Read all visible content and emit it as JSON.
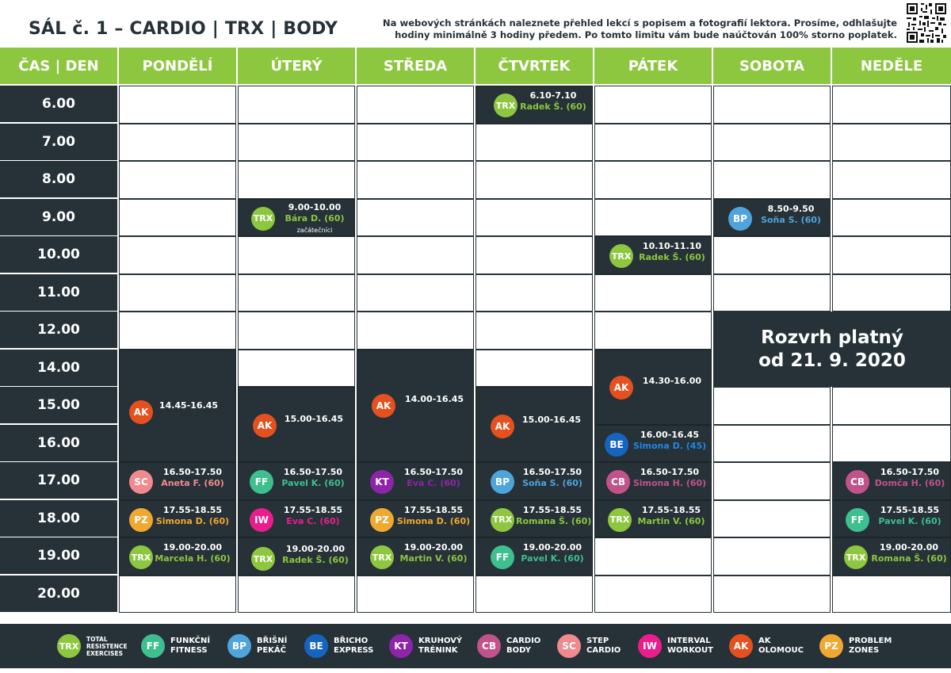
{
  "title": "SÁL č. 1 – CARDIO | TRX | BODY",
  "notice": {
    "line1": "Na webových stránkách naleznete přehled lekcí s popisem a fotografií lektora. Prosíme, odhlašujte",
    "line2": "hodiny minimálně 3 hodiny předem. Po tomto limitu vám bude naúčtován 100% storno poplatek."
  },
  "header": {
    "time_col": "ČAS | DEN",
    "days": [
      "PONDĚLÍ",
      "ÚTERÝ",
      "STŘEDA",
      "ČTVRTEK",
      "PÁTEK",
      "SOBOTA",
      "NEDĚLE"
    ]
  },
  "times": [
    "6.00",
    "7.00",
    "8.00",
    "9.00",
    "10.00",
    "11.00",
    "12.00",
    "14.00",
    "15.00",
    "16.00",
    "17.00",
    "18.00",
    "19.00",
    "20.00"
  ],
  "lesson_colors": {
    "TRX": "#8dc63f",
    "FF": "#3dbf8e",
    "BP": "#4fa4dc",
    "BE": "#1565c0",
    "KT": "#8e24aa",
    "CB": "#c2528a",
    "SC": "#f08a8e",
    "IW": "#e91e8c",
    "AK": "#e5501e",
    "PZ": "#f0a830"
  },
  "lessons": [
    {
      "day": 0,
      "code": "AK",
      "time": "14.45-16.45",
      "trainer": "",
      "trainer_color": "#ffffff",
      "note": ""
    },
    {
      "day": 0,
      "code": "SC",
      "time": "16.50-17.50",
      "trainer": "Aneta F. (60)",
      "trainer_color": "#f08a8e",
      "note": ""
    },
    {
      "day": 0,
      "code": "PZ",
      "time": "17.55-18.55",
      "trainer": "Simona D. (60)",
      "trainer_color": "#f0a830",
      "note": ""
    },
    {
      "day": 0,
      "code": "TRX",
      "time": "19.00-20.00",
      "trainer": "Marcela H. (60)",
      "trainer_color": "#8dc63f",
      "note": ""
    },
    {
      "day": 1,
      "code": "TRX",
      "time": "9.00-10.00",
      "trainer": "Bára D. (60)",
      "trainer_color": "#8dc63f",
      "note": "začátečníci"
    },
    {
      "day": 1,
      "code": "AK",
      "time": "15.00-16.45",
      "trainer": "",
      "trainer_color": "#ffffff",
      "note": ""
    },
    {
      "day": 1,
      "code": "FF",
      "time": "16.50-17.50",
      "trainer": "Pavel K. (60)",
      "trainer_color": "#3dbf8e",
      "note": ""
    },
    {
      "day": 1,
      "code": "IW",
      "time": "17.55-18.55",
      "trainer": "Eva C. (60)",
      "trainer_color": "#e91e8c",
      "note": ""
    },
    {
      "day": 1,
      "code": "TRX",
      "time": "19.00-20.00",
      "trainer": "Radek Š. (60)",
      "trainer_color": "#8dc63f",
      "note": ""
    },
    {
      "day": 2,
      "code": "AK",
      "time": "14.00-16.45",
      "trainer": "",
      "trainer_color": "#ffffff",
      "note": ""
    },
    {
      "day": 2,
      "code": "KT",
      "time": "16.50-17.50",
      "trainer": "Eva C. (60)",
      "trainer_color": "#8e24aa",
      "note": ""
    },
    {
      "day": 2,
      "code": "PZ",
      "time": "17.55-18.55",
      "trainer": "Simona D. (60)",
      "trainer_color": "#f0a830",
      "note": ""
    },
    {
      "day": 2,
      "code": "TRX",
      "time": "19.00-20.00",
      "trainer": "Martin V. (60)",
      "trainer_color": "#8dc63f",
      "note": ""
    },
    {
      "day": 3,
      "code": "TRX",
      "time": "6.10-7.10",
      "trainer": "Radek Š. (60)",
      "trainer_color": "#8dc63f",
      "note": ""
    },
    {
      "day": 3,
      "code": "AK",
      "time": "15.00-16.45",
      "trainer": "",
      "trainer_color": "#ffffff",
      "note": ""
    },
    {
      "day": 3,
      "code": "BP",
      "time": "16.50-17.50",
      "trainer": "Soňa S. (60)",
      "trainer_color": "#4fa4dc",
      "note": ""
    },
    {
      "day": 3,
      "code": "TRX",
      "time": "17.55-18.55",
      "trainer": "Romana Š. (60)",
      "trainer_color": "#8dc63f",
      "note": ""
    },
    {
      "day": 3,
      "code": "FF",
      "time": "19.00-20.00",
      "trainer": "Pavel K. (60)",
      "trainer_color": "#3dbf8e",
      "note": ""
    },
    {
      "day": 4,
      "code": "TRX",
      "time": "10.10-11.10",
      "trainer": "Radek Š. (60)",
      "trainer_color": "#8dc63f",
      "note": ""
    },
    {
      "day": 4,
      "code": "AK",
      "time": "14.30-16.00",
      "trainer": "",
      "trainer_color": "#ffffff",
      "note": ""
    },
    {
      "day": 4,
      "code": "BE",
      "time": "16.00-16.45",
      "trainer": "Simona D. (45)",
      "trainer_color": "#1e88e5",
      "note": ""
    },
    {
      "day": 4,
      "code": "CB",
      "time": "16.50-17.50",
      "trainer": "Simona H. (60)",
      "trainer_color": "#c2528a",
      "note": ""
    },
    {
      "day": 4,
      "code": "TRX",
      "time": "17.55-18.55",
      "trainer": "Martin V. (60)",
      "trainer_color": "#8dc63f",
      "note": ""
    },
    {
      "day": 5,
      "code": "BP",
      "time": "8.50-9.50",
      "trainer": "Soňa S. (60)",
      "trainer_color": "#4fa4dc",
      "note": ""
    },
    {
      "day": 6,
      "code": "CB",
      "time": "16.50-17.50",
      "trainer": "Domča H. (60)",
      "trainer_color": "#c2528a",
      "note": ""
    },
    {
      "day": 6,
      "code": "FF",
      "time": "17.55-18.55",
      "trainer": "Pavel K. (60)",
      "trainer_color": "#3dbf8e",
      "note": ""
    },
    {
      "day": 6,
      "code": "TRX",
      "time": "19.00-20.00",
      "trainer": "Romana Š. (60)",
      "trainer_color": "#8dc63f",
      "note": ""
    }
  ],
  "validity": {
    "line1": "Rozvrh platný",
    "line2": "od 21. 9. 2020"
  },
  "legend": [
    {
      "code": "TRX",
      "line1": "TOTAL",
      "line2": "RESISTENCE",
      "line3": "EXERCISES"
    },
    {
      "code": "FF",
      "line1": "FUNKČNÍ",
      "line2": "FITNESS",
      "line3": ""
    },
    {
      "code": "BP",
      "line1": "BŘIŠNÍ",
      "line2": "PEKÁČ",
      "line3": ""
    },
    {
      "code": "BE",
      "line1": "BŘICHO",
      "line2": "EXPRESS",
      "line3": ""
    },
    {
      "code": "KT",
      "line1": "KRUHOVÝ",
      "line2": "TRÉNINK",
      "line3": ""
    },
    {
      "code": "CB",
      "line1": "CARDIO",
      "line2": "BODY",
      "line3": ""
    },
    {
      "code": "SC",
      "line1": "STEP",
      "line2": "CARDIO",
      "line3": ""
    },
    {
      "code": "IW",
      "line1": "INTERVAL",
      "line2": "WORKOUT",
      "line3": ""
    },
    {
      "code": "AK",
      "line1": "AK",
      "line2": "OLOMOUC",
      "line3": ""
    },
    {
      "code": "PZ",
      "line1": "PROBLEM",
      "line2": "ZONES",
      "line3": ""
    }
  ]
}
